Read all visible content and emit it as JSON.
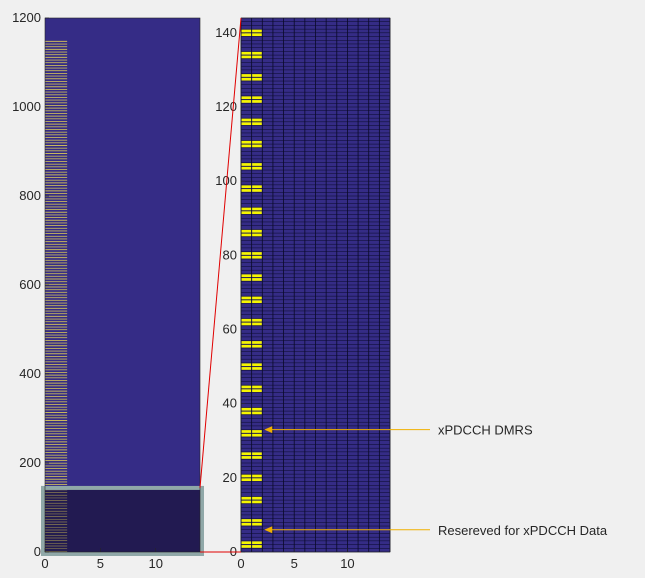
{
  "colors": {
    "figure_bg": "#f0f0f0",
    "resource_bg": "#352c86",
    "grid_line": "#0a0a2a",
    "dmrs": "#f5f500",
    "pilot_column": "#c8b85a",
    "zoom_region": "#1e1848",
    "zoom_frame": "#90a8a8",
    "zoom_lines": "#e00000",
    "annotation": "#f0b000",
    "text": "#262626"
  },
  "chart_data": [
    {
      "type": "heatmap",
      "name": "full-grid",
      "xlim": [
        0,
        14
      ],
      "ylim": [
        0,
        1200
      ],
      "xticks": [
        0,
        5,
        10
      ],
      "yticks": [
        0,
        200,
        400,
        600,
        800,
        1000,
        1200
      ],
      "pilot_column_x": [
        0,
        2
      ],
      "pilot_column_ymax": 1150,
      "zoom_box": {
        "x": [
          0,
          14
        ],
        "y": [
          0,
          144
        ]
      }
    },
    {
      "type": "heatmap",
      "name": "zoomed-grid",
      "xlim": [
        0,
        14
      ],
      "ylim": [
        0,
        144
      ],
      "xticks": [
        0,
        5,
        10
      ],
      "yticks": [
        0,
        20,
        40,
        60,
        80,
        100,
        120,
        140
      ],
      "dmrs_columns": [
        0,
        1
      ],
      "dmrs_rows": [
        1,
        2,
        7,
        8,
        13,
        14,
        19,
        20,
        25,
        26,
        31,
        32,
        37,
        38,
        43,
        44,
        49,
        50,
        55,
        56,
        61,
        62,
        67,
        68,
        73,
        74,
        79,
        80,
        85,
        86,
        91,
        92,
        97,
        98,
        103,
        104,
        109,
        110,
        115,
        116,
        121,
        122,
        127,
        128,
        133,
        134,
        139,
        140
      ],
      "annotations": [
        {
          "text": "xPDCCH DMRS",
          "x": 2,
          "y": 33
        },
        {
          "text": "Resereved for xPDCCH Data",
          "x": 2,
          "y": 6
        }
      ]
    }
  ]
}
